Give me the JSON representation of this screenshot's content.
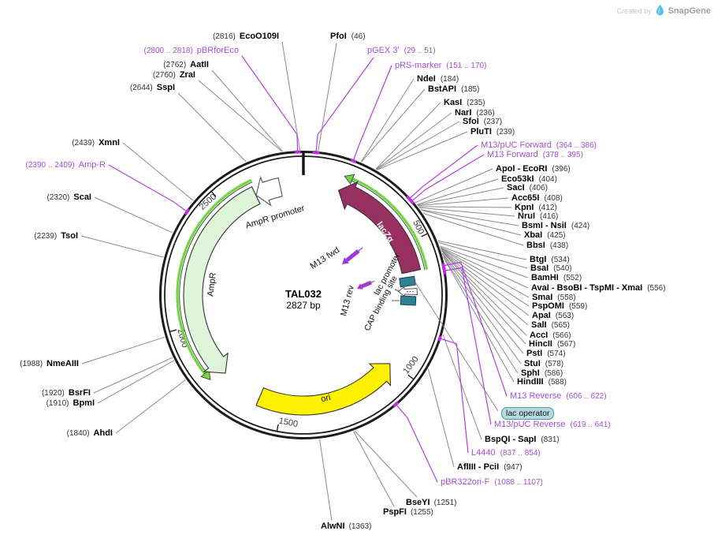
{
  "watermark": {
    "created_by": "Created by",
    "brand": "SnapGene"
  },
  "plasmid": {
    "name": "TAL032",
    "size": "2827 bp",
    "length_bp": 2827
  },
  "ruler_ticks": [
    {
      "label": "500",
      "bp": 500
    },
    {
      "label": "1000",
      "bp": 1000
    },
    {
      "label": "1500",
      "bp": 1500
    },
    {
      "label": "2000",
      "bp": 2000
    },
    {
      "label": "2500",
      "bp": 2500
    }
  ],
  "features": [
    {
      "label": "lacZα",
      "start": 146,
      "end": 610,
      "strand": "-",
      "color": "#983061",
      "text_color": "#ffffff"
    },
    {
      "label": "lac promoter",
      "start": 648,
      "end": 678,
      "strand": "-",
      "color": "#ffffff"
    },
    {
      "label": "lac operator",
      "start": 627,
      "end": 643,
      "color": "#2E8093"
    },
    {
      "label": "CAP binding site",
      "start": 683,
      "end": 704,
      "color": "#2E8093"
    },
    {
      "label": "ori",
      "start": 1008,
      "end": 1596,
      "strand": "-",
      "color": "#FFF100"
    },
    {
      "label": "AmpR",
      "start": 1767,
      "end": 2627,
      "strand": "-",
      "color": "#DFF5D9"
    },
    {
      "label": "AmpR promoter",
      "start": 2628,
      "end": 2732,
      "strand": "-",
      "color": "#ffffff"
    },
    {
      "label": "M13 fwd",
      "color": "#9A3BD0"
    },
    {
      "label": "M13 rev",
      "color": "#9A3BD0"
    }
  ],
  "orfs": [
    {
      "start": 150,
      "end": 615
    },
    {
      "start": 1788,
      "end": 2636
    }
  ],
  "primer_spans": [
    [
      29,
      51
    ],
    [
      151,
      170
    ],
    [
      364,
      386
    ],
    [
      378,
      395
    ],
    [
      606,
      622
    ],
    [
      619,
      641
    ],
    [
      837,
      854
    ],
    [
      1088,
      1107
    ],
    [
      2390,
      2409
    ],
    [
      2800,
      2818
    ]
  ],
  "sites": [
    {
      "name": "PfoI",
      "pos": "(46)",
      "bp": 46,
      "kind": "enzyme"
    },
    {
      "name": "pGEX 3'",
      "pos": "(29 .. 51)",
      "bp": 40,
      "kind": "primer"
    },
    {
      "name": "pRS-marker",
      "pos": "(151 .. 170)",
      "bp": 160,
      "kind": "primer"
    },
    {
      "name": "NdeI",
      "pos": "(184)",
      "bp": 184,
      "kind": "enzyme"
    },
    {
      "name": "BstAPI",
      "pos": "(185)",
      "bp": 185,
      "kind": "enzyme"
    },
    {
      "name": "KasI",
      "pos": "(235)",
      "bp": 235,
      "kind": "enzyme"
    },
    {
      "name": "NarI",
      "pos": "(236)",
      "bp": 236,
      "kind": "enzyme"
    },
    {
      "name": "SfoI",
      "pos": "(237)",
      "bp": 237,
      "kind": "enzyme"
    },
    {
      "name": "PluTI",
      "pos": "(239)",
      "bp": 239,
      "kind": "enzyme"
    },
    {
      "name": "M13/pUC Forward",
      "pos": "(364 .. 386)",
      "bp": 375,
      "kind": "primer"
    },
    {
      "name": "M13 Forward",
      "pos": "(378 .. 395)",
      "bp": 386,
      "kind": "primer"
    },
    {
      "name": "ApoI - EcoRI",
      "pos": "(396)",
      "bp": 396,
      "kind": "enzyme"
    },
    {
      "name": "Eco53kI",
      "pos": "(404)",
      "bp": 404,
      "kind": "enzyme"
    },
    {
      "name": "SacI",
      "pos": "(406)",
      "bp": 406,
      "kind": "enzyme"
    },
    {
      "name": "Acc65I",
      "pos": "(408)",
      "bp": 408,
      "kind": "enzyme"
    },
    {
      "name": "KpnI",
      "pos": "(412)",
      "bp": 412,
      "kind": "enzyme"
    },
    {
      "name": "NruI",
      "pos": "(416)",
      "bp": 416,
      "kind": "enzyme"
    },
    {
      "name": "BsmI - NsiI",
      "pos": "(424)",
      "bp": 424,
      "kind": "enzyme"
    },
    {
      "name": "XbaI",
      "pos": "(425)",
      "bp": 425,
      "kind": "enzyme"
    },
    {
      "name": "BbsI",
      "pos": "(438)",
      "bp": 438,
      "kind": "enzyme"
    },
    {
      "name": "BtgI",
      "pos": "(534)",
      "bp": 534,
      "kind": "enzyme"
    },
    {
      "name": "BsaI",
      "pos": "(540)",
      "bp": 540,
      "kind": "enzyme"
    },
    {
      "name": "BamHI",
      "pos": "(552)",
      "bp": 552,
      "kind": "enzyme"
    },
    {
      "name": "AvaI - BsoBI - TspMI - XmaI",
      "pos": "(556)",
      "bp": 556,
      "kind": "enzyme"
    },
    {
      "name": "SmaI",
      "pos": "(558)",
      "bp": 558,
      "kind": "enzyme"
    },
    {
      "name": "PspOMI",
      "pos": "(559)",
      "bp": 559,
      "kind": "enzyme"
    },
    {
      "name": "ApaI",
      "pos": "(563)",
      "bp": 563,
      "kind": "enzyme"
    },
    {
      "name": "SalI",
      "pos": "(565)",
      "bp": 565,
      "kind": "enzyme"
    },
    {
      "name": "AccI",
      "pos": "(566)",
      "bp": 566,
      "kind": "enzyme"
    },
    {
      "name": "HincII",
      "pos": "(567)",
      "bp": 567,
      "kind": "enzyme"
    },
    {
      "name": "PstI",
      "pos": "(574)",
      "bp": 574,
      "kind": "enzyme"
    },
    {
      "name": "StuI",
      "pos": "(578)",
      "bp": 578,
      "kind": "enzyme"
    },
    {
      "name": "SphI",
      "pos": "(586)",
      "bp": 586,
      "kind": "enzyme"
    },
    {
      "name": "HindIII",
      "pos": "(588)",
      "bp": 588,
      "kind": "enzyme"
    },
    {
      "name": "M13 Reverse",
      "pos": "(606 .. 622)",
      "bp": 614,
      "kind": "primer"
    },
    {
      "name": "M13/pUC Reverse",
      "pos": "(619 .. 641)",
      "bp": 630,
      "kind": "primer"
    },
    {
      "name": "BspQI - SapI",
      "pos": "(831)",
      "bp": 831,
      "kind": "enzyme"
    },
    {
      "name": "L4440",
      "pos": "(837 .. 854)",
      "bp": 845,
      "kind": "primer"
    },
    {
      "name": "AflIII - PciI",
      "pos": "(947)",
      "bp": 947,
      "kind": "enzyme"
    },
    {
      "name": "pBR322ori-F",
      "pos": "(1088 .. 1107)",
      "bp": 1097,
      "kind": "primer"
    },
    {
      "name": "BseYI",
      "pos": "(1251)",
      "bp": 1251,
      "kind": "enzyme"
    },
    {
      "name": "PspFI",
      "pos": "(1255)",
      "bp": 1255,
      "kind": "enzyme"
    },
    {
      "name": "AlwNI",
      "pos": "(1363)",
      "bp": 1363,
      "kind": "enzyme"
    },
    {
      "name": "AhdI",
      "pos": "(1840)",
      "bp": 1840,
      "kind": "enzyme"
    },
    {
      "name": "BpmI",
      "pos": "(1910)",
      "bp": 1910,
      "kind": "enzyme"
    },
    {
      "name": "BsrFI",
      "pos": "(1920)",
      "bp": 1920,
      "kind": "enzyme"
    },
    {
      "name": "NmeAIII",
      "pos": "(1988)",
      "bp": 1988,
      "kind": "enzyme"
    },
    {
      "name": "TsoI",
      "pos": "(2239)",
      "bp": 2239,
      "kind": "enzyme"
    },
    {
      "name": "ScaI",
      "pos": "(2320)",
      "bp": 2320,
      "kind": "enzyme"
    },
    {
      "name": "Amp-R",
      "pos": "(2390 .. 2409)",
      "bp": 2400,
      "kind": "primer"
    },
    {
      "name": "XmnI",
      "pos": "(2439)",
      "bp": 2439,
      "kind": "enzyme"
    },
    {
      "name": "SspI",
      "pos": "(2644)",
      "bp": 2644,
      "kind": "enzyme"
    },
    {
      "name": "ZraI",
      "pos": "(2760)",
      "bp": 2760,
      "kind": "enzyme"
    },
    {
      "name": "AatII",
      "pos": "(2762)",
      "bp": 2762,
      "kind": "enzyme"
    },
    {
      "name": "pBRforEco",
      "pos": "(2800 .. 2818)",
      "bp": 2809,
      "kind": "primer"
    },
    {
      "name": "EcoO109I",
      "pos": "(2816)",
      "bp": 2816,
      "kind": "enzyme"
    }
  ],
  "colors": {
    "ring": "#1c1c1c",
    "gray_leader": "#8a8a8a",
    "purple_text": "#A44FD6",
    "purple_leader": "#B63BE4",
    "purple_tick": "#C02BE8",
    "orf_green": "#72D63E",
    "teal": "#2E8093"
  }
}
